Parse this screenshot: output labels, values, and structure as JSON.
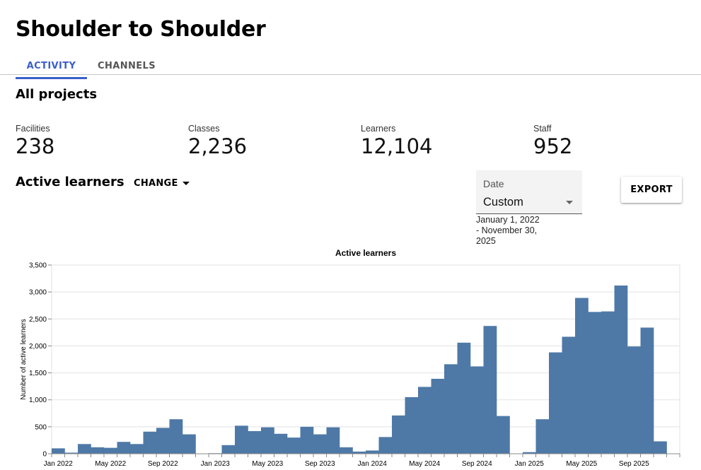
{
  "app": {
    "title": "Shoulder to Shoulder"
  },
  "tabs": [
    {
      "label": "ACTIVITY",
      "active": true
    },
    {
      "label": "CHANNELS",
      "active": false
    }
  ],
  "section": {
    "title": "All projects"
  },
  "stats": [
    {
      "label": "Facilities",
      "value": "238"
    },
    {
      "label": "Classes",
      "value": "2,236"
    },
    {
      "label": "Learners",
      "value": "12,104"
    },
    {
      "label": "Staff",
      "value": "952"
    }
  ],
  "active": {
    "title": "Active learners",
    "change_label": "CHANGE",
    "date_label": "Date",
    "date_value": "Custom",
    "date_range_line1": "January 1, 2022",
    "date_range_line2": "- November 30,",
    "date_range_line3": "2025",
    "export_label": "EXPORT"
  },
  "colors": {
    "accent": "#3a5fc9",
    "bar": "#4e79a7"
  },
  "chart_data": {
    "type": "bar",
    "title": "Active learners",
    "xlabel": "",
    "ylabel": "Number of active learners",
    "ylim": [
      0,
      3500
    ],
    "yticks": [
      0,
      500,
      1000,
      1500,
      2000,
      2500,
      3000,
      3500
    ],
    "ytick_labels": [
      "0",
      "500",
      "1,000",
      "1,500",
      "2,000",
      "2,500",
      "3,000",
      "3,500"
    ],
    "xtick_labels": [
      "Jan 2022",
      "May 2022",
      "Sep 2022",
      "Jan 2023",
      "May 2023",
      "Sep 2023",
      "Jan 2024",
      "May 2024",
      "Sep 2024",
      "Jan 2025",
      "May 2025",
      "Sep 2025"
    ],
    "xtick_month_index": [
      0,
      4,
      8,
      12,
      16,
      20,
      24,
      28,
      32,
      36,
      40,
      44
    ],
    "categories": [
      "Jan 2022",
      "Feb 2022",
      "Mar 2022",
      "Apr 2022",
      "May 2022",
      "Jun 2022",
      "Jul 2022",
      "Aug 2022",
      "Sep 2022",
      "Oct 2022",
      "Nov 2022",
      "Dec 2022",
      "Jan 2023",
      "Feb 2023",
      "Mar 2023",
      "Apr 2023",
      "May 2023",
      "Jun 2023",
      "Jul 2023",
      "Aug 2023",
      "Sep 2023",
      "Oct 2023",
      "Nov 2023",
      "Dec 2023",
      "Jan 2024",
      "Feb 2024",
      "Mar 2024",
      "Apr 2024",
      "May 2024",
      "Jun 2024",
      "Jul 2024",
      "Aug 2024",
      "Sep 2024",
      "Oct 2024",
      "Nov 2024",
      "Dec 2024",
      "Jan 2025",
      "Feb 2025",
      "Mar 2025",
      "Apr 2025",
      "May 2025",
      "Jun 2025",
      "Jul 2025",
      "Aug 2025",
      "Sep 2025",
      "Oct 2025",
      "Nov 2025"
    ],
    "values": [
      100,
      20,
      180,
      120,
      110,
      220,
      180,
      410,
      480,
      640,
      360,
      0,
      10,
      160,
      520,
      420,
      490,
      370,
      300,
      500,
      360,
      490,
      120,
      40,
      60,
      310,
      710,
      1050,
      1240,
      1390,
      1660,
      2060,
      1620,
      2370,
      700,
      0,
      30,
      640,
      1880,
      2170,
      2890,
      2630,
      2640,
      3120,
      1990,
      2340,
      230
    ]
  }
}
